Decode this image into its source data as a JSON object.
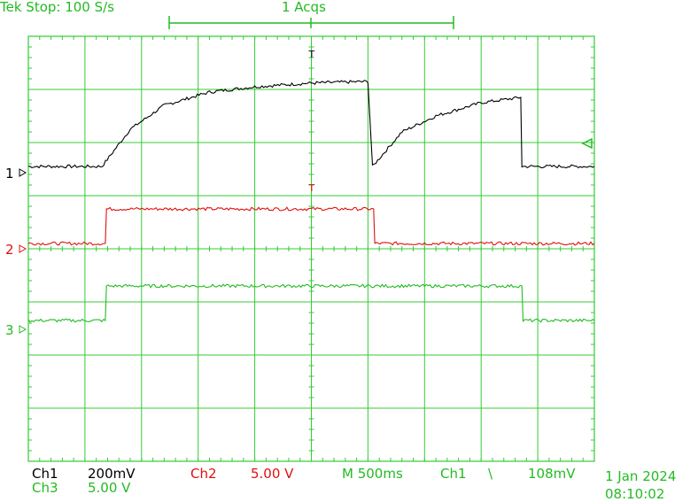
{
  "header": {
    "status": "Tek Stop: 100 S/s",
    "acqs": "1 Acqs"
  },
  "readout": {
    "ch1_label": "Ch1",
    "ch1_scale": "200mV",
    "ch2_label": "Ch2",
    "ch2_scale": "5.00 V",
    "timebase": "M 500ms",
    "trigger_source": "Ch1",
    "trigger_slope": "\\",
    "trigger_level": "108mV",
    "ch3_label": "Ch3",
    "ch3_scale": "5.00 V",
    "date": "1 Jan 2024",
    "time": "08:10:02"
  },
  "markers": {
    "ch1": "1",
    "ch2": "2",
    "ch3": "3"
  },
  "colors": {
    "grid": "#33cc33",
    "ch1": "#000000",
    "ch2": "#e01010",
    "ch3": "#22bb22",
    "background": "#ffffff"
  },
  "chart_data": {
    "type": "line",
    "grid": true,
    "divisions": {
      "x": 10,
      "y": 8
    },
    "x_unit": "s",
    "x_range": [
      0,
      5
    ],
    "y_unit": "div",
    "y_range": [
      0,
      8
    ],
    "series": [
      {
        "name": "Ch1",
        "color": "#000000",
        "x": [
          0,
          0.3,
          0.65,
          0.9,
          1.2,
          1.6,
          2.0,
          2.5,
          3.0,
          3.04,
          3.3,
          3.6,
          4.0,
          4.35,
          4.36,
          5.0
        ],
        "y": [
          5.55,
          5.55,
          5.55,
          6.25,
          6.7,
          6.95,
          7.05,
          7.12,
          7.15,
          5.55,
          6.2,
          6.5,
          6.75,
          6.85,
          5.55,
          5.55
        ]
      },
      {
        "name": "Ch2",
        "color": "#e01010",
        "x": [
          0,
          0.68,
          0.69,
          3.05,
          3.06,
          5.0
        ],
        "y": [
          4.1,
          4.1,
          4.75,
          4.75,
          4.1,
          4.1
        ]
      },
      {
        "name": "Ch3",
        "color": "#22bb22",
        "x": [
          0,
          0.68,
          0.69,
          4.36,
          4.37,
          5.0
        ],
        "y": [
          2.65,
          2.65,
          3.3,
          3.3,
          2.65,
          2.65
        ]
      }
    ]
  }
}
